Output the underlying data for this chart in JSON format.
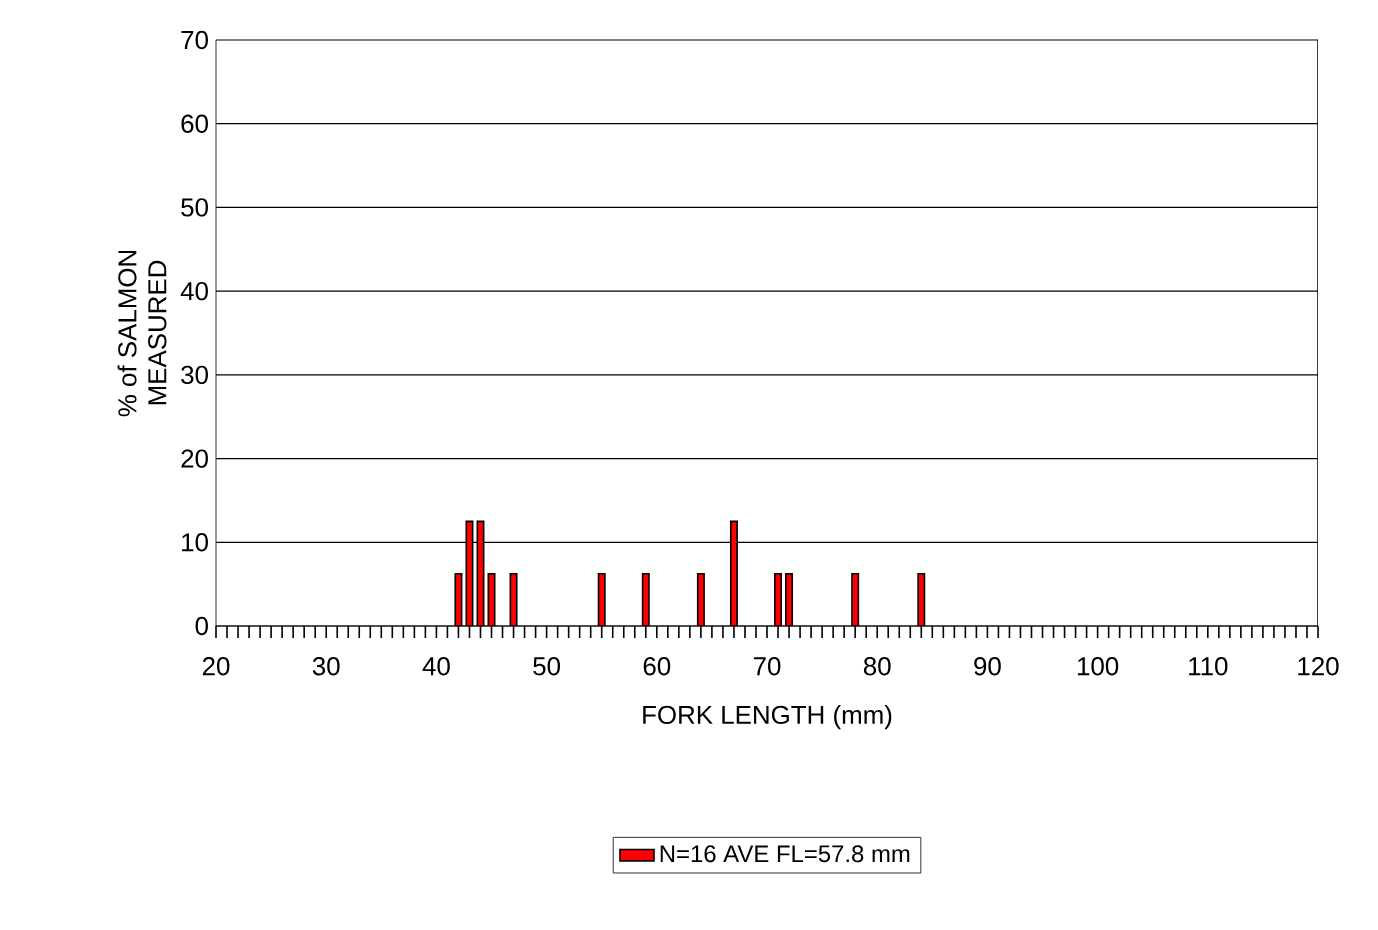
{
  "chart_data": {
    "type": "bar",
    "xlabel": "FORK LENGTH (mm)",
    "ylabel": "% of SALMON MEASURED",
    "x": [
      42,
      43,
      44,
      45,
      47,
      55,
      59,
      64,
      67,
      71,
      72,
      78,
      84
    ],
    "series": [
      {
        "name": "N=16  AVE FL=57.8 mm",
        "color": "#ff0000",
        "values": [
          6.25,
          12.5,
          12.5,
          6.25,
          6.25,
          6.25,
          6.25,
          6.25,
          12.5,
          6.25,
          6.25,
          6.25,
          6.25
        ]
      }
    ],
    "xlim": [
      20,
      120
    ],
    "ylim": [
      0,
      70
    ],
    "yticks": [
      0,
      10,
      20,
      30,
      40,
      50,
      60,
      70
    ],
    "xticks": [
      20,
      {
        "value": 21,
        "label": null
      },
      {
        "value": 22,
        "label": null
      },
      {
        "value": 23,
        "label": null
      },
      {
        "value": 24,
        "label": null
      },
      {
        "value": 25,
        "label": null
      },
      {
        "value": 26,
        "label": null
      },
      {
        "value": 27,
        "label": null
      },
      {
        "value": 28,
        "label": null
      },
      {
        "value": 29,
        "label": null
      },
      30,
      {
        "value": 31,
        "label": null
      },
      {
        "value": 32,
        "label": null
      },
      {
        "value": 33,
        "label": null
      },
      {
        "value": 34,
        "label": null
      },
      {
        "value": 35,
        "label": null
      },
      {
        "value": 36,
        "label": null
      },
      {
        "value": 37,
        "label": null
      },
      {
        "value": 38,
        "label": null
      },
      {
        "value": 39,
        "label": null
      },
      40,
      {
        "value": 41,
        "label": null
      },
      {
        "value": 42,
        "label": null
      },
      {
        "value": 43,
        "label": null
      },
      {
        "value": 44,
        "label": null
      },
      {
        "value": 45,
        "label": null
      },
      {
        "value": 46,
        "label": null
      },
      {
        "value": 47,
        "label": null
      },
      {
        "value": 48,
        "label": null
      },
      {
        "value": 49,
        "label": null
      },
      50,
      {
        "value": 51,
        "label": null
      },
      {
        "value": 52,
        "label": null
      },
      {
        "value": 53,
        "label": null
      },
      {
        "value": 54,
        "label": null
      },
      {
        "value": 55,
        "label": null
      },
      {
        "value": 56,
        "label": null
      },
      {
        "value": 57,
        "label": null
      },
      {
        "value": 58,
        "label": null
      },
      {
        "value": 59,
        "label": null
      },
      60,
      {
        "value": 61,
        "label": null
      },
      {
        "value": 62,
        "label": null
      },
      {
        "value": 63,
        "label": null
      },
      {
        "value": 64,
        "label": null
      },
      {
        "value": 65,
        "label": null
      },
      {
        "value": 66,
        "label": null
      },
      {
        "value": 67,
        "label": null
      },
      {
        "value": 68,
        "label": null
      },
      {
        "value": 69,
        "label": null
      },
      70,
      {
        "value": 71,
        "label": null
      },
      {
        "value": 72,
        "label": null
      },
      {
        "value": 73,
        "label": null
      },
      {
        "value": 74,
        "label": null
      },
      {
        "value": 75,
        "label": null
      },
      {
        "value": 76,
        "label": null
      },
      {
        "value": 77,
        "label": null
      },
      {
        "value": 78,
        "label": null
      },
      {
        "value": 79,
        "label": null
      },
      80,
      {
        "value": 81,
        "label": null
      },
      {
        "value": 82,
        "label": null
      },
      {
        "value": 83,
        "label": null
      },
      {
        "value": 84,
        "label": null
      },
      {
        "value": 85,
        "label": null
      },
      {
        "value": 86,
        "label": null
      },
      {
        "value": 87,
        "label": null
      },
      {
        "value": 88,
        "label": null
      },
      {
        "value": 89,
        "label": null
      },
      90,
      {
        "value": 91,
        "label": null
      },
      {
        "value": 92,
        "label": null
      },
      {
        "value": 93,
        "label": null
      },
      {
        "value": 94,
        "label": null
      },
      {
        "value": 95,
        "label": null
      },
      {
        "value": 96,
        "label": null
      },
      {
        "value": 97,
        "label": null
      },
      {
        "value": 98,
        "label": null
      },
      {
        "value": 99,
        "label": null
      },
      100,
      {
        "value": 101,
        "label": null
      },
      {
        "value": 102,
        "label": null
      },
      {
        "value": 103,
        "label": null
      },
      {
        "value": 104,
        "label": null
      },
      {
        "value": 105,
        "label": null
      },
      {
        "value": 106,
        "label": null
      },
      {
        "value": 107,
        "label": null
      },
      {
        "value": 108,
        "label": null
      },
      {
        "value": 109,
        "label": null
      },
      110,
      {
        "value": 111,
        "label": null
      },
      {
        "value": 112,
        "label": null
      },
      {
        "value": 113,
        "label": null
      },
      {
        "value": 114,
        "label": null
      },
      {
        "value": 115,
        "label": null
      },
      {
        "value": 116,
        "label": null
      },
      {
        "value": 117,
        "label": null
      },
      {
        "value": 118,
        "label": null
      },
      {
        "value": 119,
        "label": null
      },
      120
    ],
    "grid": "y",
    "legend": "bottom"
  }
}
